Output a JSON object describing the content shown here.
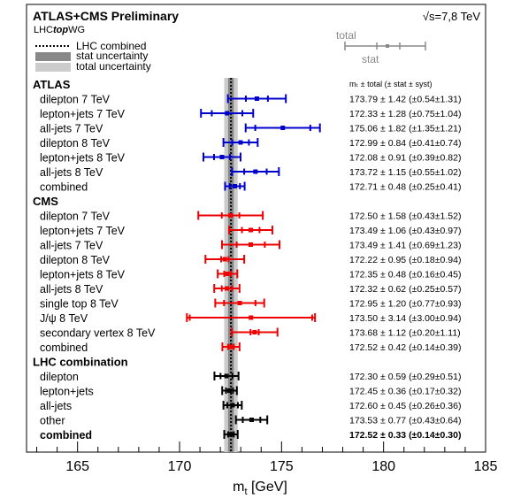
{
  "chart_data": {
    "type": "scatter",
    "title": "ATLAS+CMS Preliminary",
    "subtitle_prefix": "LHC",
    "subtitle_italic": "top",
    "subtitle_suffix": "WG",
    "energy_label": "√s=7,8 TeV",
    "xlabel": "m",
    "xlabel_sub": "t",
    "xlabel_unit": "[GeV]",
    "xlim": [
      162.5,
      185
    ],
    "xticks": [
      165,
      170,
      175,
      180,
      185
    ],
    "value_header": "mₜ ± total (± stat ± syst)",
    "legend": {
      "line": "LHC combined",
      "stat": "stat uncertainty",
      "total": "total uncertainty",
      "key_total": "total",
      "key_stat": "stat"
    },
    "combined_value": 172.52,
    "stat_band": 0.14,
    "total_band": 0.33,
    "groups": [
      {
        "name": "ATLAS",
        "color": "#0000cc",
        "entries": [
          {
            "label": "dilepton 7 TeV",
            "value": 173.79,
            "total": 1.42,
            "stat": 0.54,
            "text": "173.79 ± 1.42 (±0.54±1.31)"
          },
          {
            "label": "lepton+jets 7 TeV",
            "value": 172.33,
            "total": 1.28,
            "stat": 0.75,
            "text": "172.33 ± 1.28 (±0.75±1.04)"
          },
          {
            "label": "all-jets 7 TeV",
            "value": 175.06,
            "total": 1.82,
            "stat": 1.35,
            "text": "175.06 ± 1.82 (±1.35±1.21)"
          },
          {
            "label": "dilepton 8 TeV",
            "value": 172.99,
            "total": 0.84,
            "stat": 0.41,
            "text": "172.99 ± 0.84 (±0.41±0.74)"
          },
          {
            "label": "lepton+jets 8 TeV",
            "value": 172.08,
            "total": 0.91,
            "stat": 0.39,
            "text": "172.08 ± 0.91 (±0.39±0.82)"
          },
          {
            "label": "all-jets 8 TeV",
            "value": 173.72,
            "total": 1.15,
            "stat": 0.55,
            "text": "173.72 ± 1.15 (±0.55±1.02)"
          },
          {
            "label": "combined",
            "value": 172.71,
            "total": 0.48,
            "stat": 0.25,
            "text": "172.71 ± 0.48 (±0.25±0.41)"
          }
        ]
      },
      {
        "name": "CMS",
        "color": "#ee0000",
        "entries": [
          {
            "label": "dilepton 7 TeV",
            "value": 172.5,
            "total": 1.58,
            "stat": 0.43,
            "text": "172.50 ± 1.58 (±0.43±1.52)"
          },
          {
            "label": "lepton+jets 7 TeV",
            "value": 173.49,
            "total": 1.06,
            "stat": 0.43,
            "text": "173.49 ± 1.06 (±0.43±0.97)"
          },
          {
            "label": "all-jets 7 TeV",
            "value": 173.49,
            "total": 1.41,
            "stat": 0.69,
            "text": "173.49 ± 1.41 (±0.69±1.23)"
          },
          {
            "label": "dilepton 8 TeV",
            "value": 172.22,
            "total": 0.95,
            "stat": 0.18,
            "text": "172.22 ± 0.95 (±0.18±0.94)"
          },
          {
            "label": "lepton+jets 8 TeV",
            "value": 172.35,
            "total": 0.48,
            "stat": 0.16,
            "text": "172.35 ± 0.48 (±0.16±0.45)"
          },
          {
            "label": "all-jets 8 TeV",
            "value": 172.32,
            "total": 0.62,
            "stat": 0.25,
            "text": "172.32 ± 0.62 (±0.25±0.57)"
          },
          {
            "label": "single top 8 TeV",
            "value": 172.95,
            "total": 1.2,
            "stat": 0.77,
            "text": "172.95 ± 1.20 (±0.77±0.93)"
          },
          {
            "label": "J/ψ  8 TeV",
            "value": 173.5,
            "total": 3.14,
            "stat": 3.0,
            "text": "173.50 ± 3.14 (±3.00±0.94)"
          },
          {
            "label": "secondary vertex 8 TeV",
            "value": 173.68,
            "total": 1.12,
            "stat": 0.2,
            "text": "173.68 ± 1.12 (±0.20±1.11)"
          },
          {
            "label": "combined",
            "value": 172.52,
            "total": 0.42,
            "stat": 0.14,
            "text": "172.52 ± 0.42 (±0.14±0.39)"
          }
        ]
      },
      {
        "name": "LHC combination",
        "color": "#000000",
        "entries": [
          {
            "label": "dilepton",
            "value": 172.3,
            "total": 0.59,
            "stat": 0.29,
            "text": "172.30 ± 0.59 (±0.29±0.51)"
          },
          {
            "label": "lepton+jets",
            "value": 172.45,
            "total": 0.36,
            "stat": 0.17,
            "text": "172.45 ± 0.36 (±0.17±0.32)"
          },
          {
            "label": "all-jets",
            "value": 172.6,
            "total": 0.45,
            "stat": 0.26,
            "text": "172.60 ± 0.45 (±0.26±0.36)"
          },
          {
            "label": "other",
            "value": 173.53,
            "total": 0.77,
            "stat": 0.43,
            "text": "173.53 ± 0.77 (±0.43±0.64)"
          },
          {
            "label": "combined",
            "value": 172.52,
            "total": 0.33,
            "stat": 0.14,
            "text": "172.52 ± 0.33 (±0.14±0.30)",
            "bold": true
          }
        ]
      }
    ]
  }
}
